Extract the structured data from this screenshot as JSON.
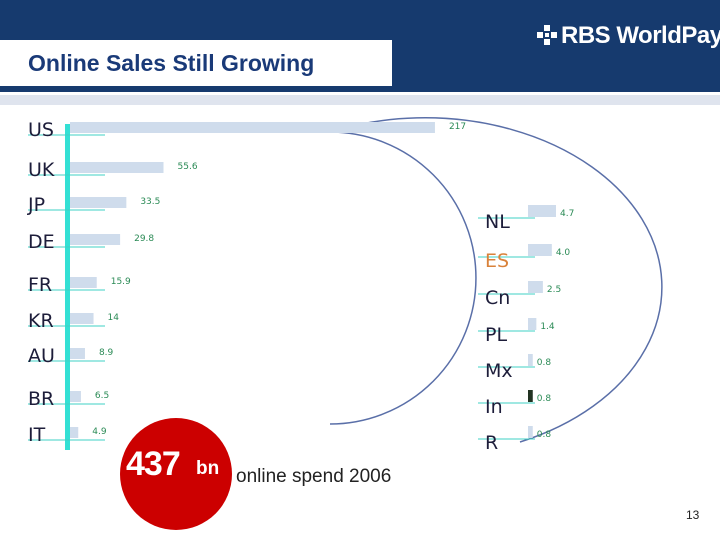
{
  "header": {
    "title": "Online Sales Still Growing",
    "logo": "RBS WorldPay"
  },
  "colors": {
    "header_bg": "#163a6e",
    "title_text": "#1a3a78",
    "bar_fill": "#cfdcec",
    "axis": "#33e0d4",
    "badge": "#cc0000",
    "highlight": "#d9823a",
    "value_text": "#2a8a55"
  },
  "chart_data": [
    {
      "type": "bar",
      "orientation": "horizontal",
      "title": "Online Sales Still Growing",
      "unit": "bn",
      "categories": [
        "US",
        "UK",
        "JP",
        "DE",
        "FR",
        "KR",
        "AU",
        "BR",
        "IT"
      ],
      "values": [
        217,
        55.6,
        33.5,
        29.8,
        15.9,
        14,
        8.9,
        6.5,
        4.9
      ],
      "value_labels": [
        "217",
        "55.6",
        "33.5",
        "29.8",
        "15.9",
        "14",
        "8.9",
        "6.5",
        "4.9"
      ]
    },
    {
      "type": "bar",
      "orientation": "horizontal",
      "unit": "bn",
      "categories": [
        "NL",
        "ES",
        "Cn",
        "PL",
        "Mx",
        "In",
        "R"
      ],
      "values": [
        4.7,
        4.0,
        2.5,
        1.4,
        0.8,
        0.8,
        0.8
      ],
      "value_labels": [
        "4.7",
        "4.0",
        "2.5",
        "1.4",
        "0.8",
        "0.8",
        "0.8"
      ],
      "highlight_category": "ES"
    }
  ],
  "summary": {
    "total": "437",
    "unit": "bn",
    "caption": "online spend  2006"
  },
  "page_number": "13"
}
